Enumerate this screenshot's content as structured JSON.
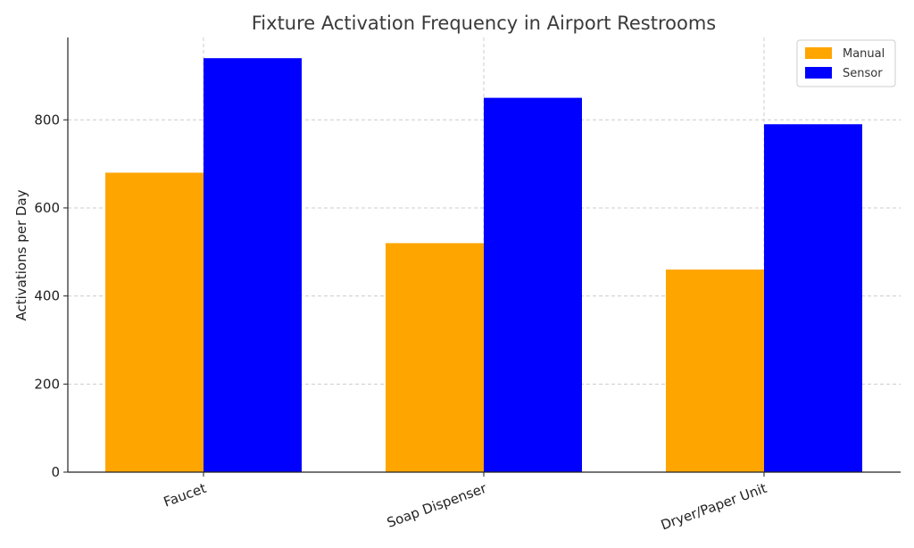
{
  "chart_data": {
    "type": "bar",
    "title": "Fixture Activation Frequency in Airport Restrooms",
    "xlabel": "",
    "ylabel": "Activations per Day",
    "categories": [
      "Faucet",
      "Soap Dispenser",
      "Dryer/Paper Unit"
    ],
    "series": [
      {
        "name": "Manual",
        "color": "#FFA500",
        "values": [
          680,
          520,
          460
        ]
      },
      {
        "name": "Sensor",
        "color": "#0000FF",
        "values": [
          940,
          850,
          790
        ]
      }
    ],
    "ylim": [
      0,
      987
    ],
    "yticks": [
      0,
      200,
      400,
      600,
      800
    ],
    "grid": true,
    "legend_position": "top-right"
  }
}
